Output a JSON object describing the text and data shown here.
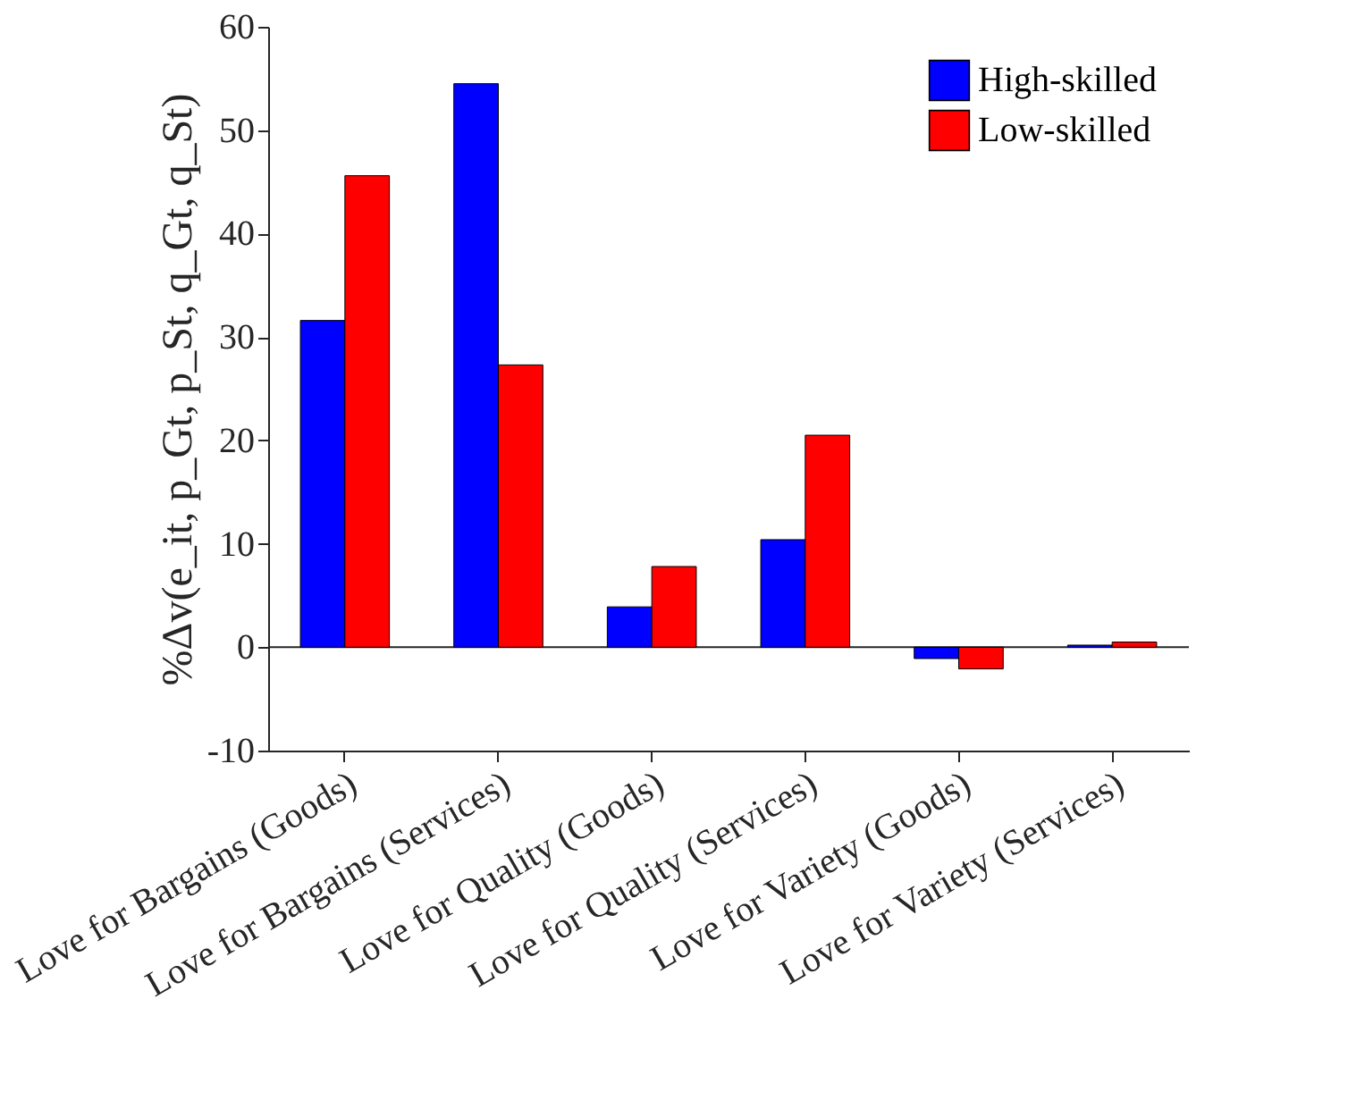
{
  "chart_data": {
    "type": "bar",
    "ylabel": "%Δv(e_it, p_Gt, p_St, q_Gt, q_St)",
    "categories": [
      "Love for Bargains (Goods)",
      "Love for Bargains (Services)",
      "Love for Quality (Goods)",
      "Love for Quality (Services)",
      "Love for Variety (Goods)",
      "Love for Variety (Services)"
    ],
    "series": [
      {
        "name": "High-skilled",
        "color": "#0000ff",
        "values": [
          31.6,
          54.5,
          3.9,
          10.4,
          -1.1,
          0.2
        ]
      },
      {
        "name": "Low-skilled",
        "color": "#ff0000",
        "values": [
          45.6,
          27.3,
          7.8,
          20.5,
          -2.1,
          0.5
        ]
      }
    ],
    "ylim": [
      -10,
      60
    ],
    "yticks": [
      -10,
      0,
      10,
      20,
      30,
      40,
      50,
      60
    ],
    "ref_lines": [
      {
        "axis": "y",
        "value": 0,
        "color": "#262626"
      }
    ],
    "legend": "top right",
    "grid": false
  }
}
